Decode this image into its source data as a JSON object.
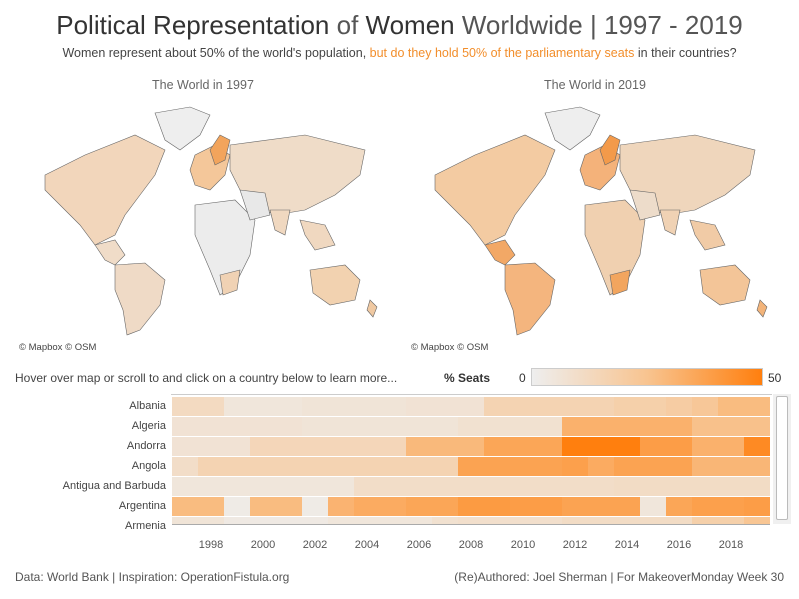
{
  "header": {
    "title_part1": "Political Representation",
    "title_part2": " of ",
    "title_part3": "Women",
    "title_part4": " Worldwide | 1997 - 2019",
    "subtitle_part1": "Women represent about 50% of the world's population, ",
    "subtitle_highlight": "but do they hold 50% of the parliamentary seats",
    "subtitle_part2": " in their countries?"
  },
  "maps": {
    "left_label": "The World in 1997",
    "right_label": "The World in 2019",
    "credit": "© Mapbox © OSM"
  },
  "controls": {
    "hover_hint": "Hover over map or scroll to and click on a country below to learn more..."
  },
  "legend": {
    "title": "% Seats",
    "min": "0",
    "max": "50",
    "colors": [
      "#eeeeee",
      "#f8c490",
      "#ff7f0e"
    ]
  },
  "footer": {
    "left": "Data: World Bank | Inspiration: OperationFistula.org",
    "right": "(Re)Authored: Joel Sherman | For MakeoverMonday Week 30"
  },
  "chart_data": {
    "type": "heatmap",
    "xlabel": "",
    "ylabel": "",
    "x": [
      1997,
      1998,
      1999,
      2000,
      2001,
      2002,
      2003,
      2004,
      2005,
      2006,
      2007,
      2008,
      2009,
      2010,
      2011,
      2012,
      2013,
      2014,
      2015,
      2016,
      2017,
      2018,
      2019
    ],
    "x_ticks": [
      "1998",
      "2000",
      "2002",
      "2004",
      "2006",
      "2008",
      "2010",
      "2012",
      "2014",
      "2016",
      "2018"
    ],
    "color_scale": {
      "label": "% Seats",
      "min": 0,
      "max": 50
    },
    "rows": [
      {
        "name": "Albania",
        "values": [
          12,
          12,
          5,
          5,
          5,
          6,
          6,
          6,
          6,
          7,
          7,
          7,
          16,
          16,
          16,
          16,
          16,
          18,
          18,
          20,
          23,
          28,
          28
        ]
      },
      {
        "name": "Algeria",
        "values": [
          7,
          7,
          7,
          7,
          7,
          6,
          6,
          6,
          6,
          6,
          6,
          8,
          8,
          8,
          8,
          32,
          32,
          32,
          32,
          32,
          26,
          26,
          26
        ]
      },
      {
        "name": "Andorra",
        "values": [
          7,
          7,
          7,
          14,
          14,
          14,
          14,
          14,
          14,
          29,
          29,
          29,
          36,
          36,
          36,
          50,
          50,
          50,
          39,
          39,
          32,
          32,
          46
        ]
      },
      {
        "name": "Angola",
        "values": [
          10,
          16,
          16,
          16,
          16,
          16,
          16,
          16,
          16,
          16,
          16,
          37,
          37,
          37,
          37,
          38,
          34,
          37,
          37,
          37,
          30,
          30,
          30
        ]
      },
      {
        "name": "Antigua and Barbuda",
        "values": [
          5,
          5,
          5,
          5,
          5,
          5,
          5,
          10,
          10,
          10,
          10,
          10,
          10,
          10,
          10,
          10,
          10,
          11,
          11,
          11,
          11,
          11,
          11
        ]
      },
      {
        "name": "Argentina",
        "values": [
          28,
          28,
          2,
          28,
          28,
          2,
          31,
          34,
          34,
          36,
          36,
          40,
          40,
          39,
          39,
          37,
          37,
          37,
          5,
          36,
          38,
          38,
          39
        ]
      },
      {
        "name": "Armenia",
        "values": [
          6,
          6,
          3,
          3,
          3,
          3,
          5,
          5,
          5,
          5,
          8,
          9,
          9,
          9,
          9,
          11,
          11,
          11,
          11,
          11,
          18,
          18,
          24
        ]
      }
    ]
  }
}
